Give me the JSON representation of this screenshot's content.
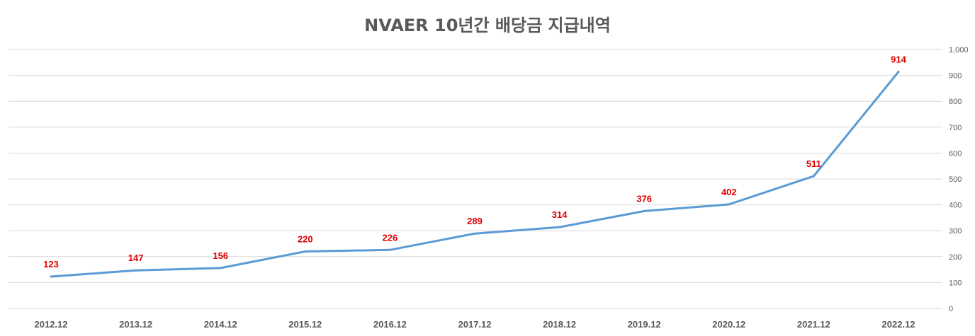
{
  "chart_data": {
    "type": "line",
    "title": "NVAER 10년간 배당금 지급내역",
    "categories": [
      "2012.12",
      "2013.12",
      "2014.12",
      "2015.12",
      "2016.12",
      "2017.12",
      "2018.12",
      "2019.12",
      "2020.12",
      "2021.12",
      "2022.12"
    ],
    "series": [
      {
        "values": [
          123,
          147,
          156,
          220,
          226,
          289,
          314,
          376,
          402,
          511,
          914
        ],
        "color": "#5b9bd5"
      }
    ],
    "ylim": [
      0,
      1000
    ],
    "yticks": [
      "0",
      "100",
      "200",
      "300",
      "400",
      "500",
      "600",
      "700",
      "800",
      "900",
      "1,000"
    ],
    "yaxis_position": "right",
    "grid": true,
    "data_label_color": "#e00000",
    "xlabel": "",
    "ylabel": ""
  }
}
